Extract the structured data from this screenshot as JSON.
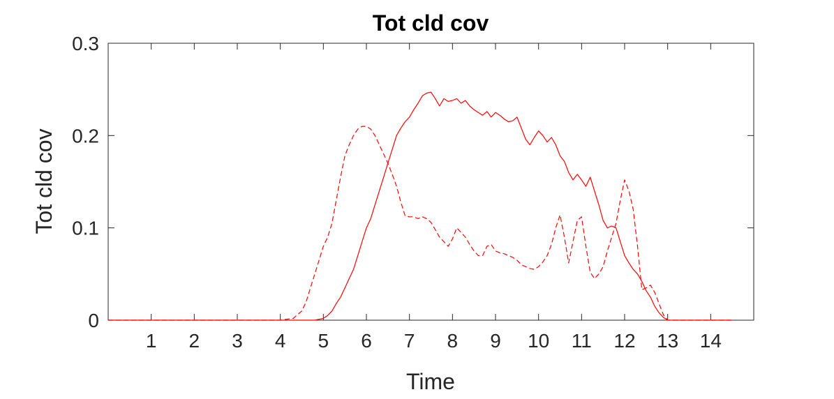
{
  "chart_data": {
    "type": "line",
    "title": "Tot cld cov",
    "xlabel": "Time",
    "ylabel": "Tot cld cov",
    "xlim": [
      0,
      15
    ],
    "ylim": [
      0,
      0.3
    ],
    "xticks": [
      1,
      2,
      3,
      4,
      5,
      6,
      7,
      8,
      9,
      10,
      11,
      12,
      13,
      14
    ],
    "yticks": [
      0,
      0.1,
      0.2,
      0.3
    ],
    "ytick_labels": [
      "0",
      "0.1",
      "0.2",
      "0.3"
    ],
    "grid": false,
    "legend": "none",
    "series": [
      {
        "style": "solid",
        "color": "#ff0000",
        "points": [
          [
            0,
            0
          ],
          [
            4.8,
            0
          ],
          [
            5.0,
            0.002
          ],
          [
            5.1,
            0.005
          ],
          [
            5.2,
            0.01
          ],
          [
            5.3,
            0.018
          ],
          [
            5.4,
            0.025
          ],
          [
            5.5,
            0.035
          ],
          [
            5.6,
            0.045
          ],
          [
            5.7,
            0.055
          ],
          [
            5.8,
            0.07
          ],
          [
            5.9,
            0.085
          ],
          [
            6.0,
            0.1
          ],
          [
            6.1,
            0.11
          ],
          [
            6.2,
            0.125
          ],
          [
            6.3,
            0.14
          ],
          [
            6.4,
            0.155
          ],
          [
            6.5,
            0.17
          ],
          [
            6.6,
            0.185
          ],
          [
            6.7,
            0.2
          ],
          [
            6.8,
            0.208
          ],
          [
            6.9,
            0.215
          ],
          [
            7.0,
            0.22
          ],
          [
            7.1,
            0.228
          ],
          [
            7.2,
            0.235
          ],
          [
            7.3,
            0.243
          ],
          [
            7.4,
            0.246
          ],
          [
            7.5,
            0.247
          ],
          [
            7.6,
            0.24
          ],
          [
            7.7,
            0.232
          ],
          [
            7.8,
            0.24
          ],
          [
            7.9,
            0.237
          ],
          [
            8.0,
            0.238
          ],
          [
            8.1,
            0.24
          ],
          [
            8.2,
            0.235
          ],
          [
            8.3,
            0.238
          ],
          [
            8.4,
            0.232
          ],
          [
            8.5,
            0.228
          ],
          [
            8.6,
            0.225
          ],
          [
            8.7,
            0.222
          ],
          [
            8.8,
            0.226
          ],
          [
            8.9,
            0.22
          ],
          [
            9.0,
            0.225
          ],
          [
            9.1,
            0.222
          ],
          [
            9.2,
            0.218
          ],
          [
            9.3,
            0.215
          ],
          [
            9.4,
            0.216
          ],
          [
            9.5,
            0.22
          ],
          [
            9.6,
            0.208
          ],
          [
            9.7,
            0.196
          ],
          [
            9.8,
            0.19
          ],
          [
            9.9,
            0.198
          ],
          [
            10.0,
            0.205
          ],
          [
            10.1,
            0.2
          ],
          [
            10.2,
            0.193
          ],
          [
            10.3,
            0.198
          ],
          [
            10.4,
            0.19
          ],
          [
            10.5,
            0.178
          ],
          [
            10.6,
            0.172
          ],
          [
            10.7,
            0.16
          ],
          [
            10.8,
            0.152
          ],
          [
            10.9,
            0.158
          ],
          [
            11.0,
            0.152
          ],
          [
            11.1,
            0.145
          ],
          [
            11.2,
            0.155
          ],
          [
            11.3,
            0.14
          ],
          [
            11.4,
            0.125
          ],
          [
            11.5,
            0.108
          ],
          [
            11.6,
            0.1
          ],
          [
            11.7,
            0.102
          ],
          [
            11.8,
            0.1
          ],
          [
            11.9,
            0.085
          ],
          [
            12.0,
            0.07
          ],
          [
            12.1,
            0.062
          ],
          [
            12.2,
            0.055
          ],
          [
            12.3,
            0.05
          ],
          [
            12.4,
            0.042
          ],
          [
            12.5,
            0.032
          ],
          [
            12.6,
            0.025
          ],
          [
            12.7,
            0.015
          ],
          [
            12.8,
            0.008
          ],
          [
            12.9,
            0.003
          ],
          [
            13.0,
            0.0
          ],
          [
            14.5,
            0
          ]
        ]
      },
      {
        "style": "dashed",
        "color": "#ff0000",
        "points": [
          [
            0,
            0
          ],
          [
            4.0,
            0
          ],
          [
            4.3,
            0.002
          ],
          [
            4.5,
            0.01
          ],
          [
            4.6,
            0.02
          ],
          [
            4.7,
            0.035
          ],
          [
            4.8,
            0.05
          ],
          [
            4.9,
            0.065
          ],
          [
            5.0,
            0.08
          ],
          [
            5.1,
            0.09
          ],
          [
            5.2,
            0.105
          ],
          [
            5.3,
            0.13
          ],
          [
            5.4,
            0.155
          ],
          [
            5.5,
            0.178
          ],
          [
            5.6,
            0.19
          ],
          [
            5.7,
            0.2
          ],
          [
            5.8,
            0.207
          ],
          [
            5.9,
            0.21
          ],
          [
            6.0,
            0.21
          ],
          [
            6.1,
            0.207
          ],
          [
            6.2,
            0.2
          ],
          [
            6.3,
            0.19
          ],
          [
            6.4,
            0.18
          ],
          [
            6.5,
            0.17
          ],
          [
            6.6,
            0.158
          ],
          [
            6.7,
            0.145
          ],
          [
            6.8,
            0.128
          ],
          [
            6.9,
            0.113
          ],
          [
            7.0,
            0.112
          ],
          [
            7.1,
            0.112
          ],
          [
            7.2,
            0.11
          ],
          [
            7.3,
            0.112
          ],
          [
            7.4,
            0.11
          ],
          [
            7.5,
            0.106
          ],
          [
            7.6,
            0.098
          ],
          [
            7.7,
            0.09
          ],
          [
            7.8,
            0.085
          ],
          [
            7.9,
            0.08
          ],
          [
            8.0,
            0.088
          ],
          [
            8.1,
            0.1
          ],
          [
            8.2,
            0.095
          ],
          [
            8.3,
            0.09
          ],
          [
            8.4,
            0.082
          ],
          [
            8.5,
            0.075
          ],
          [
            8.6,
            0.07
          ],
          [
            8.7,
            0.07
          ],
          [
            8.8,
            0.08
          ],
          [
            8.9,
            0.082
          ],
          [
            9.0,
            0.075
          ],
          [
            9.1,
            0.073
          ],
          [
            9.2,
            0.072
          ],
          [
            9.3,
            0.07
          ],
          [
            9.4,
            0.068
          ],
          [
            9.5,
            0.065
          ],
          [
            9.6,
            0.06
          ],
          [
            9.7,
            0.058
          ],
          [
            9.8,
            0.056
          ],
          [
            9.9,
            0.055
          ],
          [
            10.0,
            0.058
          ],
          [
            10.1,
            0.063
          ],
          [
            10.2,
            0.07
          ],
          [
            10.3,
            0.082
          ],
          [
            10.4,
            0.1
          ],
          [
            10.5,
            0.114
          ],
          [
            10.6,
            0.09
          ],
          [
            10.7,
            0.062
          ],
          [
            10.8,
            0.085
          ],
          [
            10.9,
            0.108
          ],
          [
            11.0,
            0.112
          ],
          [
            11.1,
            0.08
          ],
          [
            11.2,
            0.052
          ],
          [
            11.3,
            0.045
          ],
          [
            11.4,
            0.05
          ],
          [
            11.5,
            0.058
          ],
          [
            11.6,
            0.075
          ],
          [
            11.7,
            0.09
          ],
          [
            11.8,
            0.105
          ],
          [
            11.9,
            0.13
          ],
          [
            12.0,
            0.152
          ],
          [
            12.1,
            0.14
          ],
          [
            12.2,
            0.12
          ],
          [
            12.3,
            0.08
          ],
          [
            12.4,
            0.033
          ],
          [
            12.5,
            0.035
          ],
          [
            12.6,
            0.038
          ],
          [
            12.7,
            0.03
          ],
          [
            12.8,
            0.018
          ],
          [
            12.9,
            0.006
          ],
          [
            13.0,
            0.0
          ],
          [
            14.5,
            0
          ]
        ]
      }
    ]
  }
}
